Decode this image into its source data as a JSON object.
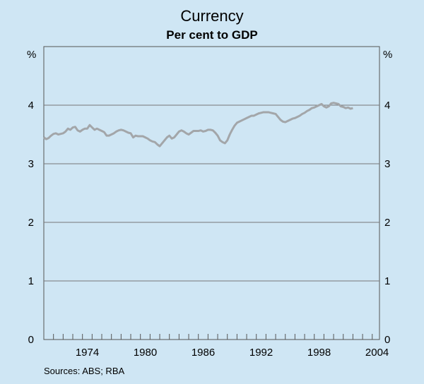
{
  "chart_data": {
    "type": "line",
    "title": "Currency",
    "subtitle": "Per cent to GDP",
    "y_unit_left": "%",
    "y_unit_right": "%",
    "ylim": [
      0,
      5
    ],
    "yticks": [
      "0",
      "1",
      "2",
      "3",
      "4"
    ],
    "xlim": [
      1970.0,
      2004.75
    ],
    "xtick_labels": [
      "1974",
      "1980",
      "1986",
      "1992",
      "1998",
      "2004"
    ],
    "source": "Sources: ABS; RBA",
    "series": [
      {
        "name": "Currency",
        "color": "#a3a6a9",
        "start_year": 1970.0,
        "step": 0.25,
        "values": [
          3.45,
          3.42,
          3.44,
          3.48,
          3.51,
          3.52,
          3.5,
          3.51,
          3.52,
          3.55,
          3.6,
          3.58,
          3.62,
          3.63,
          3.57,
          3.55,
          3.58,
          3.6,
          3.6,
          3.66,
          3.62,
          3.58,
          3.6,
          3.58,
          3.56,
          3.54,
          3.48,
          3.48,
          3.5,
          3.52,
          3.55,
          3.57,
          3.58,
          3.57,
          3.55,
          3.53,
          3.52,
          3.45,
          3.48,
          3.47,
          3.47,
          3.47,
          3.45,
          3.43,
          3.4,
          3.38,
          3.37,
          3.33,
          3.3,
          3.35,
          3.4,
          3.45,
          3.48,
          3.43,
          3.45,
          3.5,
          3.55,
          3.57,
          3.55,
          3.52,
          3.5,
          3.53,
          3.56,
          3.56,
          3.56,
          3.57,
          3.55,
          3.56,
          3.58,
          3.58,
          3.57,
          3.53,
          3.48,
          3.4,
          3.37,
          3.35,
          3.4,
          3.5,
          3.58,
          3.65,
          3.7,
          3.72,
          3.74,
          3.76,
          3.78,
          3.8,
          3.82,
          3.82,
          3.84,
          3.86,
          3.87,
          3.88,
          3.88,
          3.88,
          3.87,
          3.86,
          3.85,
          3.8,
          3.75,
          3.72,
          3.71,
          3.73,
          3.75,
          3.77,
          3.78,
          3.8,
          3.82,
          3.85,
          3.87,
          3.9,
          3.92,
          3.95,
          3.96,
          3.98,
          4.0,
          4.02,
          3.98,
          3.96,
          3.98,
          4.03,
          4.04,
          4.03,
          4.02,
          3.98,
          3.97,
          3.95,
          3.96,
          3.94,
          3.95
        ]
      }
    ]
  }
}
